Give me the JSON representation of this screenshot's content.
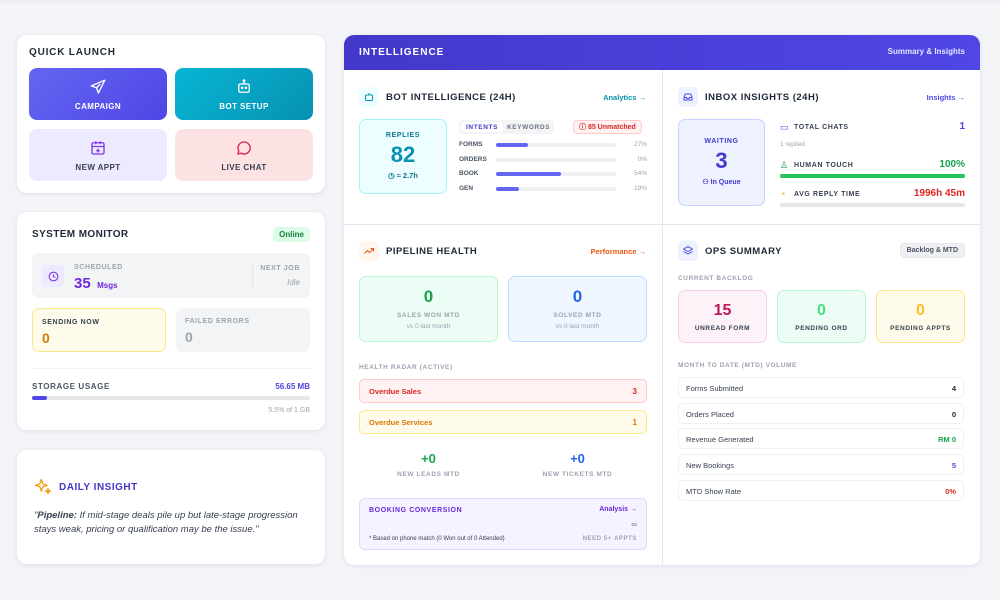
{
  "quick_launch": {
    "title": "QUICK LAUNCH",
    "tiles": [
      {
        "label": "CAMPAIGN",
        "icon": "send-icon",
        "bg": "#5b5bdc",
        "fg": "#ffffff"
      },
      {
        "label": "BOT SETUP",
        "icon": "bot-icon",
        "bg": "#0891b2",
        "fg": "#ffffff"
      },
      {
        "label": "NEW APPT",
        "icon": "calendar-plus-icon",
        "bg": "#ede9fe",
        "fg": "#374151"
      },
      {
        "label": "LIVE CHAT",
        "icon": "chat-bubble-icon",
        "bg": "#fde2e4",
        "fg": "#374151"
      }
    ]
  },
  "system_monitor": {
    "title": "SYSTEM MONITOR",
    "status": "Online",
    "scheduled_label": "SCHEDULED",
    "scheduled_value": "35",
    "scheduled_unit": "Msgs",
    "next_job_label": "NEXT JOB",
    "next_job_value": "Idle",
    "sending_label": "SENDING NOW",
    "sending_value": "0",
    "failed_label": "FAILED ERRORS",
    "failed_value": "0",
    "storage_label": "STORAGE USAGE",
    "storage_value": "56.65 MB",
    "storage_percent_text": "5.5% of 1 GB",
    "storage_fraction": 0.055
  },
  "daily_insight": {
    "title": "DAILY INSIGHT",
    "lead": "Pipeline:",
    "text": " If mid-stage deals pile up but late-stage progression stays weak, pricing or qualification may be the issue.\""
  },
  "intelligence": {
    "title": "INTELLIGENCE",
    "link": "Summary & Insights"
  },
  "bot_intel": {
    "title": "BOT INTELLIGENCE (24H)",
    "link": "Analytics →",
    "replies_label": "REPLIES",
    "replies_value": "82",
    "replies_time": "≈ 2.7h",
    "tabs": [
      "INTENTS",
      "KEYWORDS"
    ],
    "unmatched": "85 Unmatched",
    "intents": [
      {
        "label": "FORMS",
        "pct_text": "27%",
        "fraction": 0.27
      },
      {
        "label": "ORDERS",
        "pct_text": "0%",
        "fraction": 0
      },
      {
        "label": "BOOK",
        "pct_text": "54%",
        "fraction": 0.54
      },
      {
        "label": "GEN",
        "pct_text": "19%",
        "fraction": 0.19
      }
    ]
  },
  "inbox": {
    "title": "INBOX INSIGHTS (24H)",
    "link": "Insights →",
    "waiting_label": "WAITING",
    "waiting_value": "3",
    "queue_label": "In Queue",
    "total_chats_label": "TOTAL CHATS",
    "total_chats_value": "1",
    "replied_text": "1 replied",
    "human_touch_label": "HUMAN TOUCH",
    "human_touch_value": "100%",
    "human_touch_fraction": 1.0,
    "avg_reply_label": "AVG REPLY TIME",
    "avg_reply_value": "1996h 45m"
  },
  "pipeline": {
    "title": "PIPELINE HEALTH",
    "link": "Performance →",
    "sales_won_value": "0",
    "sales_won_label": "SALES WON MTD",
    "sales_won_sub": "vs 0 last month",
    "solved_value": "0",
    "solved_label": "SOLVED MTD",
    "solved_sub": "vs 0 last month",
    "radar_label": "HEALTH RADAR (ACTIVE)",
    "overdue_sales_label": "Overdue Sales",
    "overdue_sales_value": "3",
    "overdue_services_label": "Overdue Services",
    "overdue_services_value": "1",
    "new_leads_value": "+0",
    "new_leads_label": "NEW LEADS MTD",
    "new_tickets_value": "+0",
    "new_tickets_label": "NEW TICKETS MTD",
    "booking_title": "BOOKING CONVERSION",
    "booking_link": "Analysis →",
    "booking_value": "∞",
    "booking_note": "* Based on phone match (0 Won out of 0 Attended)",
    "booking_need": "NEED 5+ APPTS"
  },
  "ops": {
    "title": "OPS SUMMARY",
    "badge": "Backlog & MTD",
    "backlog_label": "CURRENT BACKLOG",
    "backlog": [
      {
        "value": "15",
        "label": "UNREAD FORM"
      },
      {
        "value": "0",
        "label": "PENDING ORD"
      },
      {
        "value": "0",
        "label": "PENDING APPTS"
      }
    ],
    "mtd_label": "MONTH TO DATE (MTD) VOLUME",
    "mtd": [
      {
        "label": "Forms Submitted",
        "value": "4"
      },
      {
        "label": "Orders Placed",
        "value": "0"
      },
      {
        "label": "Revenue Generated",
        "value": "RM 0"
      },
      {
        "label": "New Bookings",
        "value": "5"
      },
      {
        "label": "MTD Show Rate",
        "value": "0%"
      }
    ]
  }
}
